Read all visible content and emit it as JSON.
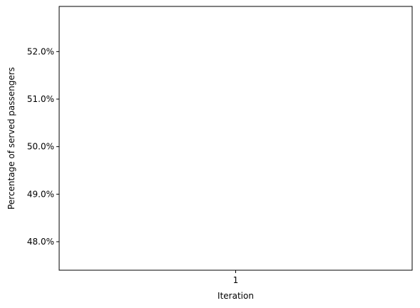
{
  "chart_data": {
    "type": "line",
    "title": "",
    "xlabel": "Iteration",
    "ylabel": "Percentage of served passengers",
    "x": [
      1
    ],
    "x_tick_labels": [
      "1"
    ],
    "xlim": [
      0.945,
      1.055
    ],
    "ylim": [
      47.4,
      52.95
    ],
    "y_ticks": [
      48.0,
      49.0,
      50.0,
      51.0,
      52.0
    ],
    "y_tick_labels": [
      "48.0%",
      "49.0%",
      "50.0%",
      "51.0%",
      "52.0%"
    ],
    "series": [],
    "grid": false,
    "legend": "none"
  }
}
